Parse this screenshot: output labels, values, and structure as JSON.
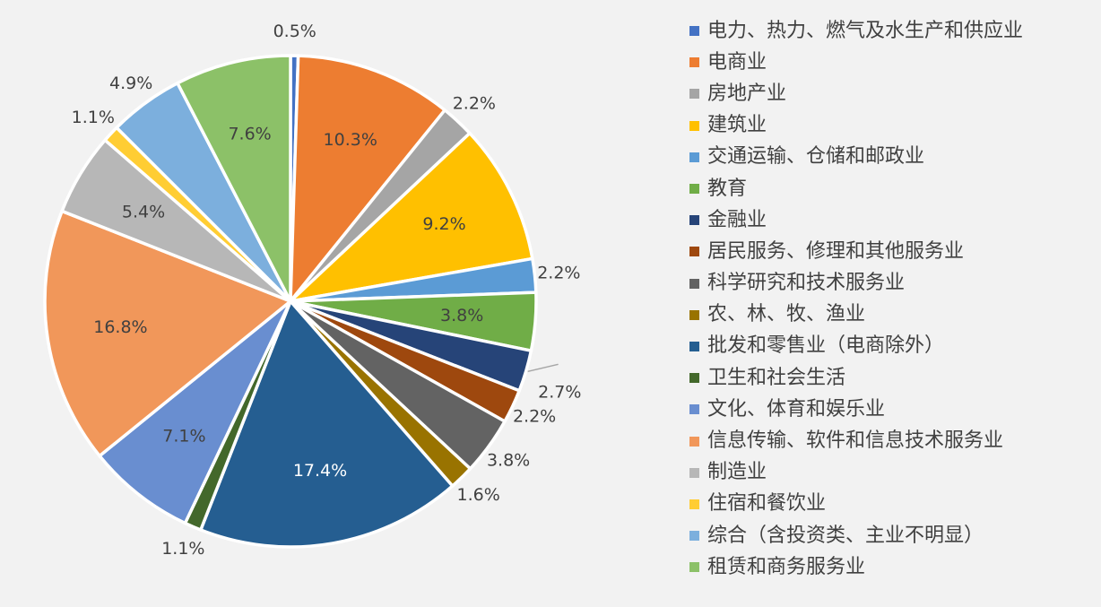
{
  "chart_data": {
    "type": "pie",
    "title": "",
    "start_angle_deg": 0,
    "direction": "clockwise",
    "legend_position": "right",
    "colors": {
      "background": "#f2f2f2",
      "label_dark": "#404040",
      "label_light": "#ffffff",
      "separator": "#ffffff",
      "leader_line": "#a6a6a6"
    },
    "slices": [
      {
        "name": "电力、热力、燃气及水生产和供应业",
        "value": 0.5,
        "label": "0.5%",
        "color": "#4472c4",
        "label_placement": "outside"
      },
      {
        "name": "电商业",
        "value": 10.3,
        "label": "10.3%",
        "color": "#ed7d31",
        "label_placement": "inside"
      },
      {
        "name": "房地产业",
        "value": 2.2,
        "label": "2.2%",
        "color": "#a5a5a5",
        "label_placement": "outside"
      },
      {
        "name": "建筑业",
        "value": 9.2,
        "label": "9.2%",
        "color": "#ffc000",
        "label_placement": "inside"
      },
      {
        "name": "交通运输、仓储和邮政业",
        "value": 2.2,
        "label": "2.2%",
        "color": "#5b9bd5",
        "label_placement": "outside"
      },
      {
        "name": "教育",
        "value": 3.8,
        "label": "3.8%",
        "color": "#70ad47",
        "label_placement": "inside"
      },
      {
        "name": "金融业",
        "value": 2.7,
        "label": "2.7%",
        "color": "#264478",
        "label_placement": "outside",
        "leader_line": true
      },
      {
        "name": "居民服务、修理和其他服务业",
        "value": 2.2,
        "label": "2.2%",
        "color": "#9e480e",
        "label_placement": "outside"
      },
      {
        "name": "科学研究和技术服务业",
        "value": 3.8,
        "label": "3.8%",
        "color": "#636363",
        "label_placement": "outside"
      },
      {
        "name": "农、林、牧、渔业",
        "value": 1.6,
        "label": "1.6%",
        "color": "#997300",
        "label_placement": "outside"
      },
      {
        "name": "批发和零售业（电商除外）",
        "value": 17.4,
        "label": "17.4%",
        "color": "#255e91",
        "label_placement": "inside"
      },
      {
        "name": "卫生和社会生活",
        "value": 1.1,
        "label": "1.1%",
        "color": "#43682b",
        "label_placement": "outside"
      },
      {
        "name": "文化、体育和娱乐业",
        "value": 7.1,
        "label": "7.1%",
        "color": "#698ed0",
        "label_placement": "inside"
      },
      {
        "name": "信息传输、软件和信息技术服务业",
        "value": 16.8,
        "label": "16.8%",
        "color": "#f1975a",
        "label_placement": "inside"
      },
      {
        "name": "制造业",
        "value": 5.4,
        "label": "5.4%",
        "color": "#b7b7b7",
        "label_placement": "inside"
      },
      {
        "name": "住宿和餐饮业",
        "value": 1.1,
        "label": "1.1%",
        "color": "#ffcd33",
        "label_placement": "outside"
      },
      {
        "name": "综合（含投资类、主业不明显）",
        "value": 4.9,
        "label": "4.9%",
        "color": "#7cafdd",
        "label_placement": "outside"
      },
      {
        "name": "租赁和商务服务业",
        "value": 7.6,
        "label": "7.6%",
        "color": "#8cc168",
        "label_placement": "inside"
      }
    ]
  }
}
